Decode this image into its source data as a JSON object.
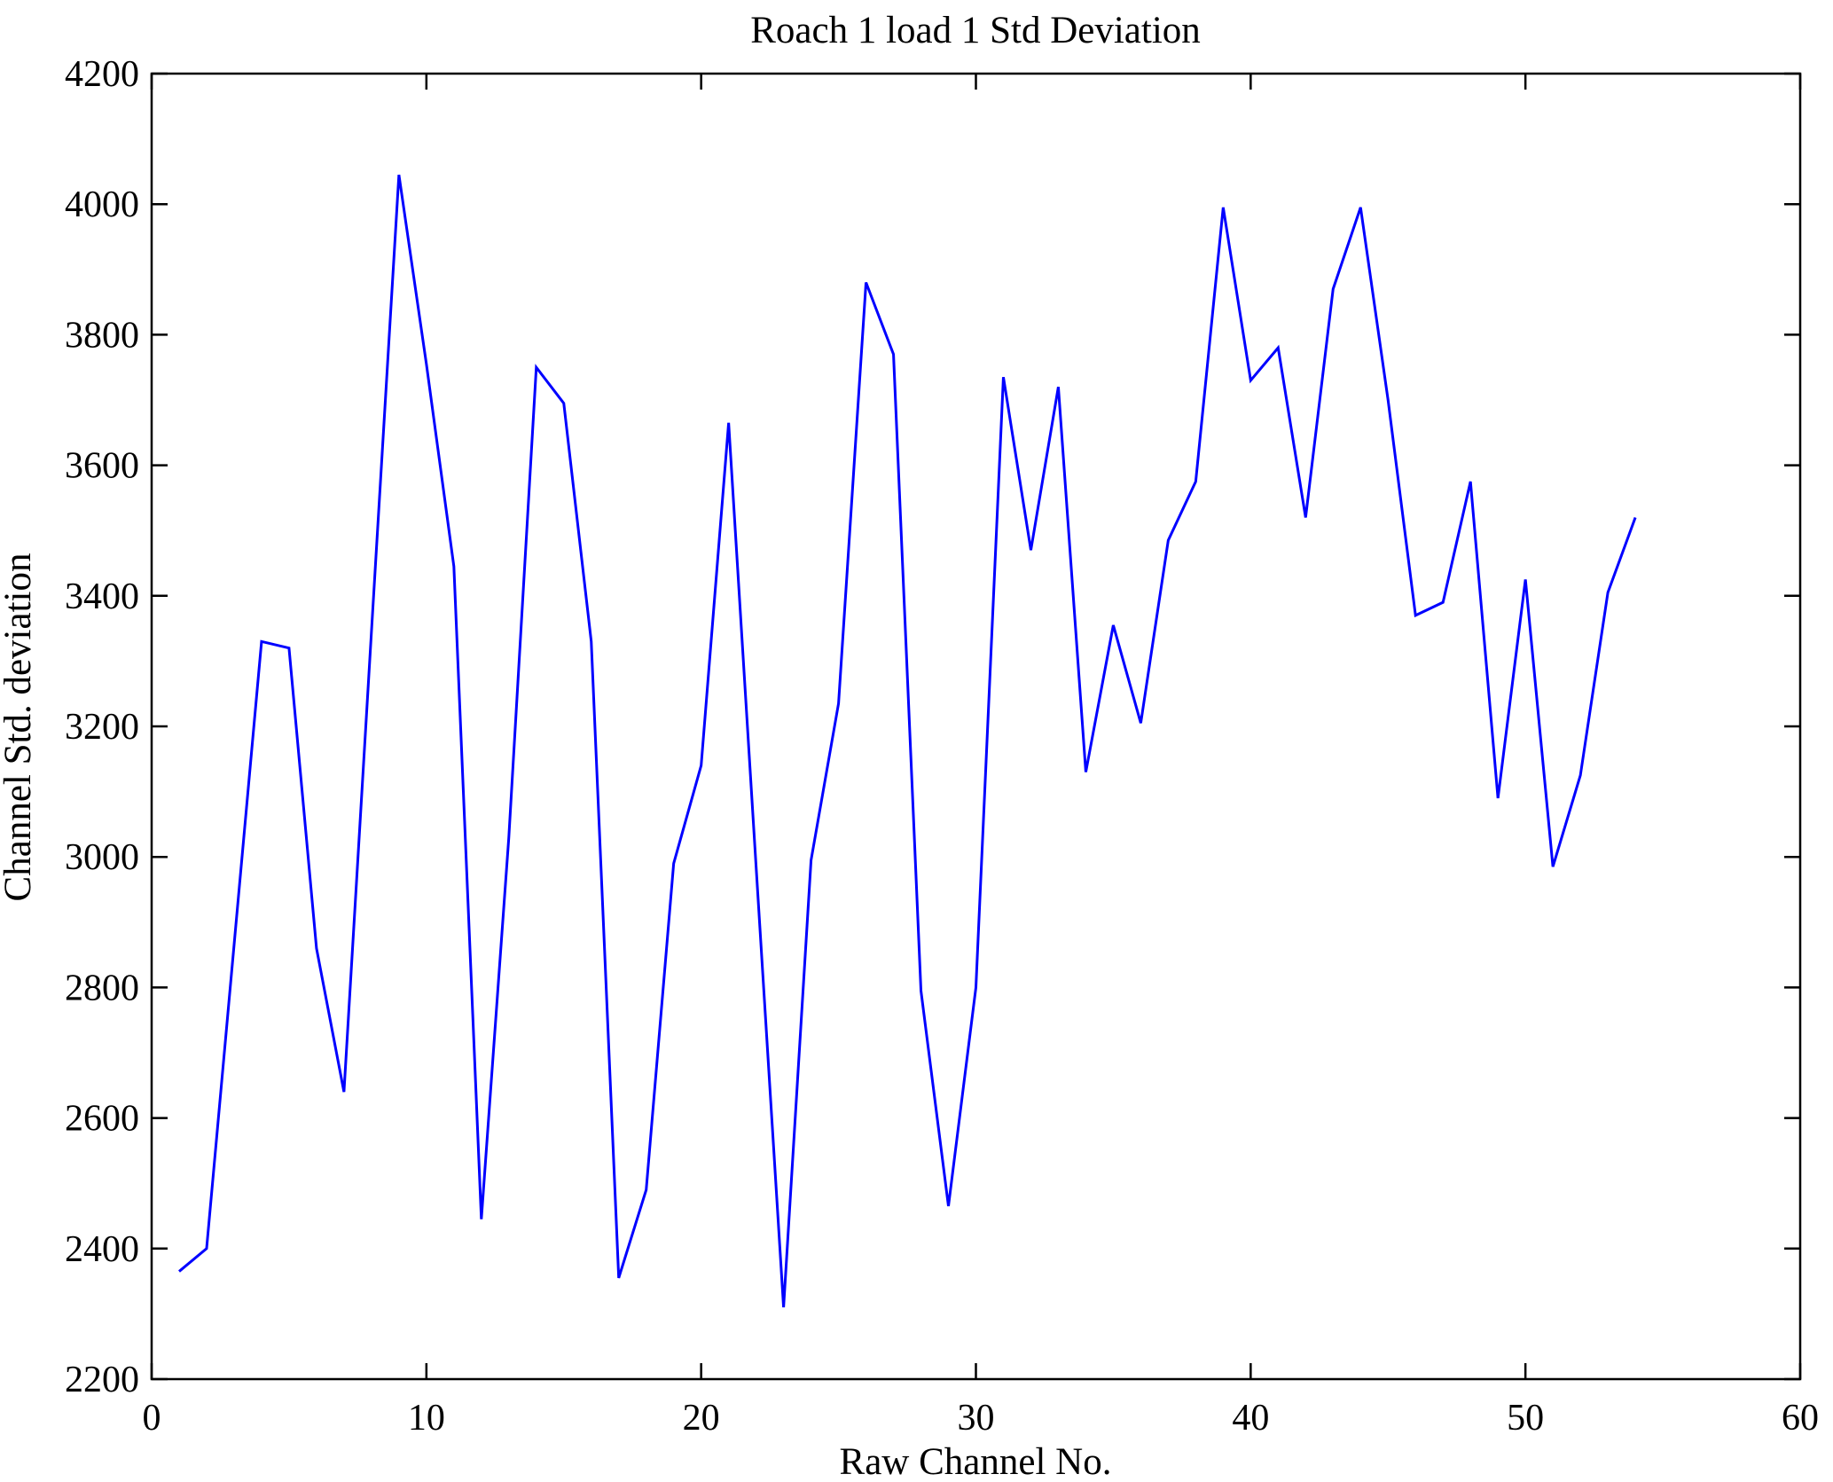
{
  "figure": {
    "background": "#ffffff"
  },
  "chart_data": {
    "type": "line",
    "title": "Roach 1 load 1 Std Deviation",
    "xlabel": "Raw Channel No.",
    "ylabel": "Channel Std. deviation",
    "xlim": [
      0,
      60
    ],
    "ylim": [
      2200,
      4200
    ],
    "xticks": [
      0,
      10,
      20,
      30,
      40,
      50,
      60
    ],
    "yticks": [
      2200,
      2400,
      2600,
      2800,
      3000,
      3200,
      3400,
      3600,
      3800,
      4000,
      4200
    ],
    "grid": false,
    "legend": null,
    "box": true,
    "line_color": "#0000ff",
    "axis_color": "#000000",
    "x": [
      1,
      2,
      3,
      4,
      5,
      6,
      7,
      8,
      9,
      10,
      11,
      12,
      13,
      14,
      15,
      16,
      17,
      18,
      19,
      20,
      21,
      22,
      23,
      24,
      25,
      26,
      27,
      28,
      29,
      30,
      31,
      32,
      33,
      34,
      35,
      36,
      37,
      38,
      39,
      40,
      41,
      42,
      43,
      44,
      45,
      46,
      47,
      48,
      49,
      50,
      51,
      52,
      53,
      54
    ],
    "values": [
      2365,
      2400,
      2865,
      3330,
      3320,
      2860,
      2640,
      3345,
      4045,
      3755,
      3445,
      2445,
      3030,
      3750,
      3695,
      3330,
      2355,
      2490,
      2990,
      3140,
      3665,
      2985,
      2310,
      2995,
      3235,
      3880,
      3770,
      2795,
      2465,
      2800,
      3735,
      3470,
      3720,
      3130,
      3355,
      3205,
      3485,
      3575,
      3995,
      3730,
      3780,
      3520,
      3870,
      3995,
      3700,
      3370,
      3390,
      3575,
      3090,
      3425,
      2985,
      3125,
      3405,
      3520
    ]
  }
}
